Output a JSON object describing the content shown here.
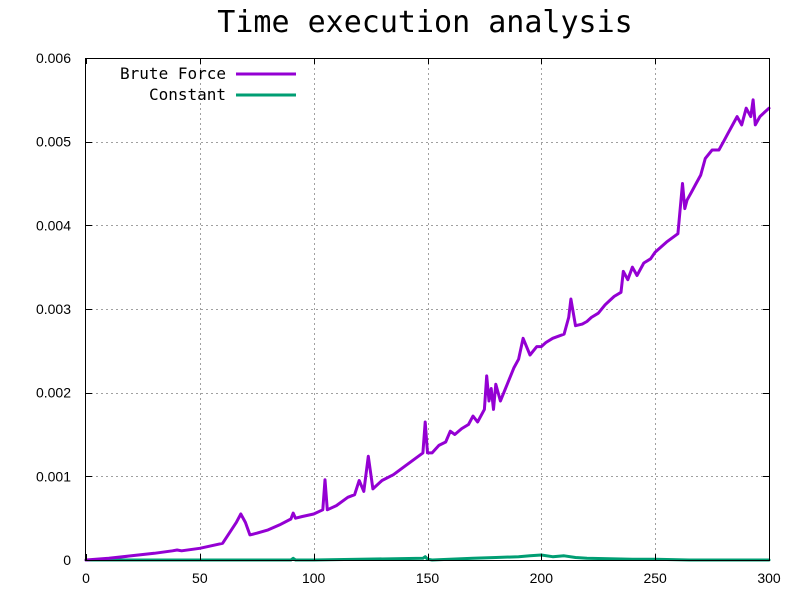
{
  "chart_data": {
    "type": "line",
    "title": "Time execution analysis",
    "xlabel": "",
    "ylabel": "",
    "xlim": [
      0,
      300
    ],
    "ylim": [
      0,
      0.006
    ],
    "xticks": [
      0,
      50,
      100,
      150,
      200,
      250,
      300
    ],
    "xtick_labels": [
      "0",
      "50",
      "100",
      "150",
      "200",
      "250",
      "300"
    ],
    "yticks": [
      0,
      0.001,
      0.002,
      0.003,
      0.004,
      0.005,
      0.006
    ],
    "ytick_labels": [
      "0",
      "0.001",
      "0.002",
      "0.003",
      "0.004",
      "0.005",
      "0.006"
    ],
    "grid": true,
    "legend_position": "top-left",
    "series": [
      {
        "name": "Brute Force",
        "color": "#9400d3",
        "x": [
          0,
          10,
          20,
          30,
          38,
          40,
          42,
          50,
          60,
          66,
          68,
          70,
          72,
          75,
          80,
          85,
          90,
          91,
          92,
          95,
          100,
          104,
          105,
          106,
          110,
          115,
          118,
          120,
          122,
          124,
          126,
          130,
          135,
          140,
          145,
          148,
          149,
          150,
          152,
          155,
          158,
          160,
          162,
          165,
          168,
          170,
          172,
          175,
          176,
          177,
          178,
          179,
          180,
          182,
          185,
          188,
          190,
          192,
          195,
          198,
          200,
          202,
          205,
          208,
          210,
          212,
          213,
          215,
          218,
          220,
          222,
          225,
          228,
          230,
          232,
          235,
          236,
          238,
          240,
          242,
          245,
          248,
          250,
          255,
          260,
          262,
          263,
          264,
          266,
          268,
          270,
          272,
          275,
          278,
          280,
          282,
          284,
          286,
          288,
          290,
          292,
          293,
          294,
          296,
          298,
          300
        ],
        "y": [
          0.0,
          2e-05,
          5e-05,
          8e-05,
          0.00011,
          0.00012,
          0.00011,
          0.00014,
          0.0002,
          0.00045,
          0.00055,
          0.00045,
          0.0003,
          0.00032,
          0.00036,
          0.00042,
          0.00049,
          0.00056,
          0.0005,
          0.00052,
          0.00055,
          0.0006,
          0.00096,
          0.0006,
          0.00065,
          0.00075,
          0.00078,
          0.00095,
          0.00082,
          0.00124,
          0.00085,
          0.00095,
          0.00102,
          0.00112,
          0.00122,
          0.00128,
          0.00165,
          0.00128,
          0.00128,
          0.00137,
          0.00141,
          0.00154,
          0.0015,
          0.00157,
          0.00162,
          0.00172,
          0.00165,
          0.0018,
          0.0022,
          0.0019,
          0.00205,
          0.0018,
          0.0021,
          0.0019,
          0.0021,
          0.0023,
          0.0024,
          0.00265,
          0.00245,
          0.00255,
          0.00255,
          0.0026,
          0.00265,
          0.00268,
          0.0027,
          0.0029,
          0.00312,
          0.0028,
          0.00282,
          0.00285,
          0.0029,
          0.00295,
          0.00305,
          0.0031,
          0.00315,
          0.0032,
          0.00345,
          0.00335,
          0.0035,
          0.0034,
          0.00355,
          0.0036,
          0.00368,
          0.0038,
          0.0039,
          0.0045,
          0.0042,
          0.0043,
          0.0044,
          0.0045,
          0.0046,
          0.0048,
          0.0049,
          0.0049,
          0.005,
          0.0051,
          0.0052,
          0.0053,
          0.0052,
          0.0054,
          0.0053,
          0.0055,
          0.0052,
          0.0053,
          0.00535,
          0.0054
        ]
      },
      {
        "name": "Constant",
        "color": "#009e73",
        "x": [
          0,
          50,
          90,
          91,
          92,
          100,
          148,
          149,
          150,
          152,
          170,
          180,
          190,
          195,
          200,
          205,
          210,
          215,
          220,
          240,
          250,
          265,
          270,
          300
        ],
        "y": [
          0.0,
          0.0,
          0.0,
          2e-05,
          0.0,
          0.0,
          2e-05,
          4e-05,
          1e-05,
          0.0,
          2e-05,
          3e-05,
          4e-05,
          5e-05,
          6e-05,
          4e-05,
          5e-05,
          3e-05,
          2e-05,
          1e-05,
          1e-05,
          0.0,
          0.0,
          0.0
        ]
      }
    ]
  }
}
